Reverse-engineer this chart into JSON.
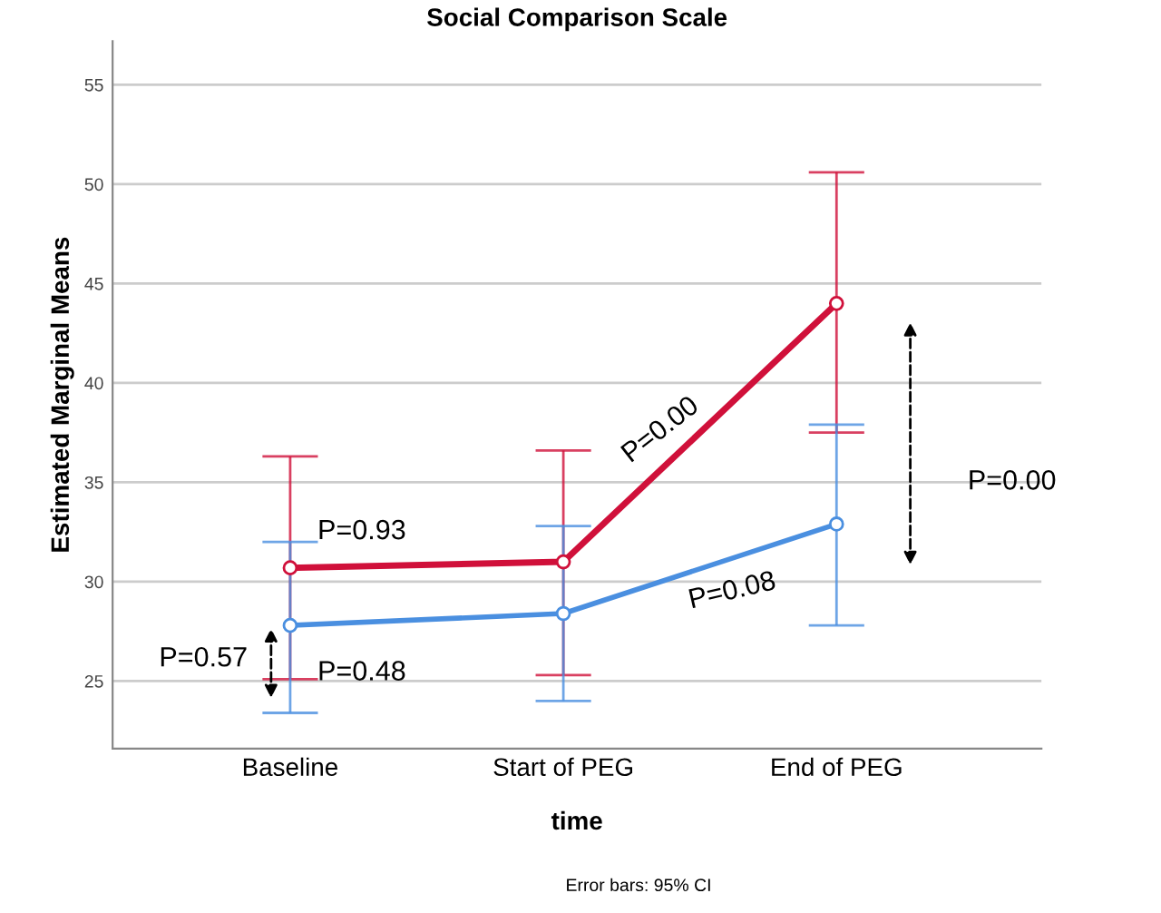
{
  "chart_data": {
    "type": "line",
    "title": "Social Comparison Scale",
    "xlabel": "time",
    "ylabel": "Estimated Marginal Means",
    "categories": [
      "Baseline",
      "Start of PEG",
      "End of PEG"
    ],
    "series": [
      {
        "color": "#d0103a",
        "values": [
          30.7,
          31.0,
          44.0
        ],
        "errors": [
          [
            25.1,
            36.3
          ],
          [
            25.3,
            36.6
          ],
          [
            37.5,
            50.6
          ]
        ]
      },
      {
        "color": "#4a8fe0",
        "values": [
          27.8,
          28.4,
          32.9
        ],
        "errors": [
          [
            23.4,
            32.0
          ],
          [
            24.0,
            32.8
          ],
          [
            27.8,
            37.9
          ]
        ]
      }
    ],
    "ylim": [
      21.6,
      57.2
    ],
    "yticks": [
      25,
      30,
      35,
      40,
      45,
      50,
      55
    ],
    "grid": "y",
    "marker": "circle",
    "line_style": "solid",
    "annotations": [
      "P=0.93",
      "P=0.57",
      "P=0.48",
      "P=0.00",
      "P=0.08",
      "P=0.00",
      "Error bars: 95% CI"
    ]
  }
}
